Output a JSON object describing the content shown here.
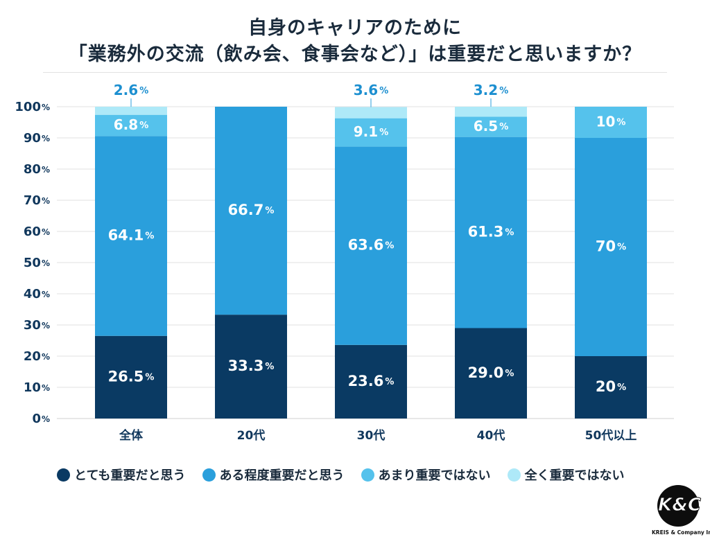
{
  "header": {
    "title_line1": "自身のキャリアのために",
    "title_line2": "「業務外の交流（飲み会、食事会など）」は重要だと思いますか？"
  },
  "chart_data": {
    "type": "bar",
    "stacked": true,
    "title": "自身のキャリアのために「業務外の交流（飲み会、食事会など）」は重要だと思いますか？",
    "categories": [
      "全体",
      "20代",
      "30代",
      "40代",
      "50代以上"
    ],
    "series": [
      {
        "name": "とても重要だと思う",
        "color": "#0a3a63",
        "values": [
          26.5,
          33.3,
          23.6,
          29.0,
          20
        ],
        "labels": [
          "26.5",
          "33.3",
          "23.6",
          "29.0",
          "20"
        ]
      },
      {
        "name": "ある程度重要だと思う",
        "color": "#2a9fdc",
        "values": [
          64.1,
          66.7,
          63.6,
          61.3,
          70
        ],
        "labels": [
          "64.1",
          "66.7",
          "63.6",
          "61.3",
          "70"
        ]
      },
      {
        "name": "あまり重要ではない",
        "color": "#55c2ec",
        "values": [
          6.8,
          0,
          9.1,
          6.5,
          10
        ],
        "labels": [
          "6.8",
          "",
          "9.1",
          "6.5",
          "10"
        ]
      },
      {
        "name": "全く重要ではない",
        "color": "#aee9f8",
        "values": [
          2.6,
          0,
          3.6,
          3.2,
          0
        ],
        "labels": [
          "2.6",
          "",
          "3.6",
          "3.2",
          ""
        ]
      }
    ],
    "unit": "%",
    "ylim": [
      0,
      100
    ],
    "yticks": [
      0,
      10,
      20,
      30,
      40,
      50,
      60,
      70,
      80,
      90,
      100
    ],
    "grid": true,
    "legend_position": "bottom"
  },
  "logo": {
    "mark": "K&C",
    "company": "KREIS & Company Inc."
  }
}
